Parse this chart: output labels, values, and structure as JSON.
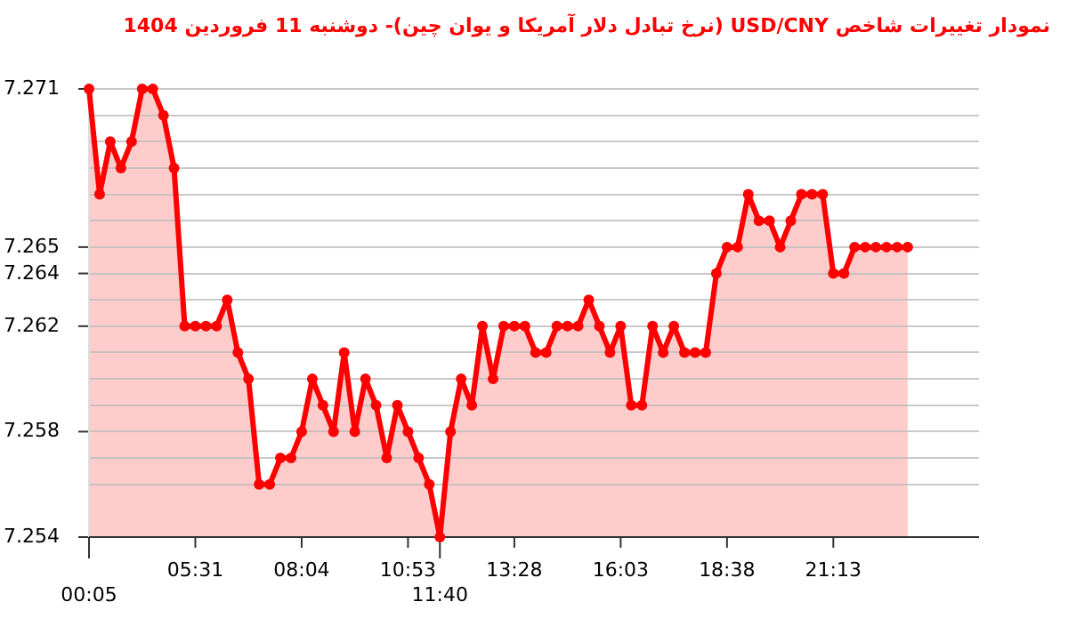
{
  "chart_data": {
    "type": "area",
    "title": "نمودار تغییرات شاخص USD/CNY (نرخ تبادل دلار آمریکا و یوان چین)-  دوشنبه  11 فروردین 1404",
    "categories": [
      "00:05",
      null,
      null,
      null,
      null,
      null,
      null,
      null,
      null,
      null,
      "05:31",
      null,
      null,
      null,
      null,
      null,
      null,
      null,
      null,
      null,
      "08:04",
      null,
      null,
      null,
      null,
      null,
      null,
      null,
      null,
      null,
      "10:53",
      null,
      null,
      "11:40",
      null,
      null,
      null,
      null,
      null,
      null,
      "13:28",
      null,
      null,
      null,
      null,
      null,
      null,
      null,
      null,
      null,
      "16:03",
      null,
      null,
      null,
      null,
      null,
      null,
      null,
      null,
      null,
      "18:38",
      null,
      null,
      null,
      null,
      null,
      null,
      null,
      null,
      null,
      "21:13",
      null,
      null,
      null,
      null,
      null,
      null,
      null,
      null,
      null,
      null,
      null,
      null,
      null
    ],
    "series": [
      {
        "color": "#ff0000",
        "values": [
          7.271,
          7.267,
          7.269,
          7.268,
          7.269,
          7.271,
          7.271,
          7.27,
          7.268,
          7.262,
          7.262,
          7.262,
          7.262,
          7.263,
          7.261,
          7.26,
          7.256,
          7.256,
          7.257,
          7.257,
          7.258,
          7.26,
          7.259,
          7.258,
          7.261,
          7.258,
          7.26,
          7.259,
          7.257,
          7.259,
          7.258,
          7.257,
          7.256,
          7.254,
          7.258,
          7.26,
          7.259,
          7.262,
          7.26,
          7.262,
          7.262,
          7.262,
          7.261,
          7.261,
          7.262,
          7.262,
          7.262,
          7.263,
          7.262,
          7.261,
          7.262,
          7.259,
          7.259,
          7.262,
          7.261,
          7.262,
          7.261,
          7.261,
          7.261,
          7.264,
          7.265,
          7.265,
          7.267,
          7.266,
          7.266,
          7.265,
          7.266,
          7.267,
          7.267,
          7.267,
          7.264,
          7.264,
          7.265,
          7.265,
          7.265,
          7.265,
          7.265,
          7.265,
          null,
          null,
          null,
          null,
          null,
          null
        ]
      }
    ],
    "ylim": [
      7.254,
      7.271
    ],
    "yticks": [
      7.254,
      {
        "value": 7.256,
        "label": null
      },
      {
        "value": 7.257,
        "label": null
      },
      7.258,
      {
        "value": 7.259,
        "label": null
      },
      {
        "value": 7.26,
        "label": null
      },
      {
        "value": 7.261,
        "label": null
      },
      7.262,
      {
        "value": 7.263,
        "label": null
      },
      7.264,
      7.265,
      {
        "value": 7.266,
        "label": null
      },
      {
        "value": 7.267,
        "label": null
      },
      {
        "value": 7.268,
        "label": null
      },
      {
        "value": 7.269,
        "label": null
      },
      {
        "value": 7.27,
        "label": null
      },
      7.271
    ],
    "grid": "y",
    "marker": "circle",
    "line_style": "solid"
  }
}
